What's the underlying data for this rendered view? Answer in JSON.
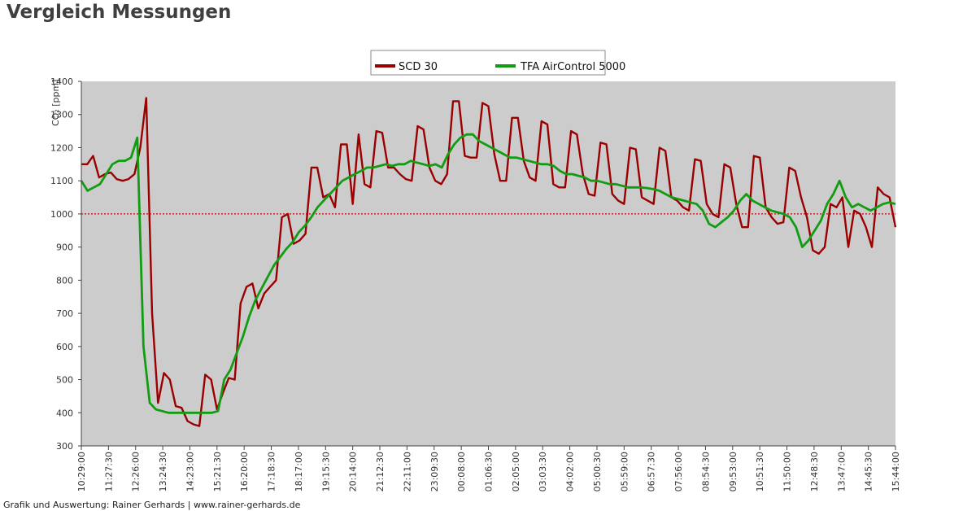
{
  "page": {
    "title": "Vergleich Messungen",
    "footer": "Grafik und Auswertung: Rainer Gerhards | www.rainer-gerhards.de"
  },
  "colors": {
    "plot_background": "#cccccc",
    "scd30": "#9b0000",
    "tfa": "#129c12",
    "threshold": "#cc0000",
    "axis": "#444444"
  },
  "chart_data": {
    "type": "line",
    "title": "Vergleich Messungen",
    "ylabel": "CO₂ [ppm]",
    "xlabel": "",
    "ylim": [
      300,
      1400
    ],
    "yticks": [
      300,
      400,
      500,
      600,
      700,
      800,
      900,
      1000,
      1100,
      1200,
      1300,
      1400
    ],
    "xticks": [
      "10:29:00",
      "11:27:30",
      "12:26:00",
      "13:24:30",
      "14:23:00",
      "15:21:30",
      "16:20:00",
      "17:18:30",
      "18:17:00",
      "19:15:30",
      "20:14:00",
      "21:12:30",
      "22:11:00",
      "23:09:30",
      "00:08:00",
      "01:06:30",
      "02:05:00",
      "03:03:30",
      "04:02:00",
      "05:00:30",
      "05:59:00",
      "06:57:30",
      "07:56:00",
      "08:54:30",
      "09:53:00",
      "10:51:30",
      "11:50:00",
      "12:48:30",
      "13:47:00",
      "14:45:30",
      "15:44:00"
    ],
    "threshold": 1000,
    "grid": false,
    "legend": "top-center",
    "series": [
      {
        "name": "SCD 30",
        "values": [
          1150,
          1150,
          1175,
          1110,
          1120,
          1125,
          1105,
          1100,
          1105,
          1120,
          1200,
          1350,
          700,
          430,
          520,
          500,
          420,
          415,
          375,
          365,
          360,
          515,
          500,
          410,
          460,
          505,
          500,
          730,
          780,
          790,
          715,
          760,
          780,
          800,
          990,
          1000,
          910,
          920,
          940,
          1140,
          1140,
          1050,
          1060,
          1020,
          1210,
          1210,
          1030,
          1240,
          1090,
          1080,
          1250,
          1245,
          1140,
          1140,
          1120,
          1105,
          1100,
          1265,
          1255,
          1140,
          1100,
          1090,
          1120,
          1340,
          1340,
          1175,
          1170,
          1170,
          1335,
          1325,
          1180,
          1100,
          1100,
          1290,
          1290,
          1160,
          1110,
          1100,
          1280,
          1270,
          1090,
          1080,
          1080,
          1250,
          1240,
          1120,
          1060,
          1055,
          1215,
          1210,
          1060,
          1040,
          1030,
          1200,
          1195,
          1050,
          1040,
          1030,
          1200,
          1190,
          1050,
          1040,
          1020,
          1010,
          1165,
          1160,
          1030,
          1000,
          990,
          1150,
          1140,
          1030,
          960,
          960,
          1175,
          1170,
          1020,
          990,
          970,
          975,
          1140,
          1130,
          1050,
          990,
          890,
          880,
          900,
          1030,
          1020,
          1050,
          900,
          1010,
          1000,
          960,
          900,
          1080,
          1060,
          1050,
          960
        ]
      },
      {
        "name": "TFA AirControl 5000",
        "values": [
          1100,
          1070,
          1080,
          1090,
          1120,
          1150,
          1160,
          1160,
          1170,
          1230,
          600,
          430,
          410,
          405,
          400,
          400,
          400,
          400,
          400,
          400,
          400,
          400,
          405,
          500,
          530,
          580,
          630,
          690,
          740,
          775,
          810,
          845,
          870,
          895,
          915,
          945,
          965,
          990,
          1020,
          1040,
          1060,
          1080,
          1100,
          1110,
          1120,
          1130,
          1140,
          1140,
          1145,
          1150,
          1145,
          1150,
          1150,
          1160,
          1155,
          1150,
          1145,
          1150,
          1140,
          1180,
          1210,
          1230,
          1240,
          1240,
          1220,
          1210,
          1200,
          1190,
          1180,
          1170,
          1170,
          1165,
          1160,
          1155,
          1150,
          1150,
          1145,
          1130,
          1120,
          1120,
          1115,
          1110,
          1100,
          1100,
          1095,
          1090,
          1090,
          1085,
          1080,
          1080,
          1080,
          1078,
          1075,
          1070,
          1060,
          1050,
          1045,
          1040,
          1035,
          1030,
          1010,
          970,
          960,
          975,
          990,
          1010,
          1040,
          1060,
          1040,
          1030,
          1020,
          1010,
          1005,
          1000,
          990,
          960,
          900,
          920,
          950,
          980,
          1030,
          1060,
          1100,
          1050,
          1020,
          1030,
          1020,
          1010,
          1020,
          1030,
          1035,
          1030
        ]
      }
    ]
  }
}
